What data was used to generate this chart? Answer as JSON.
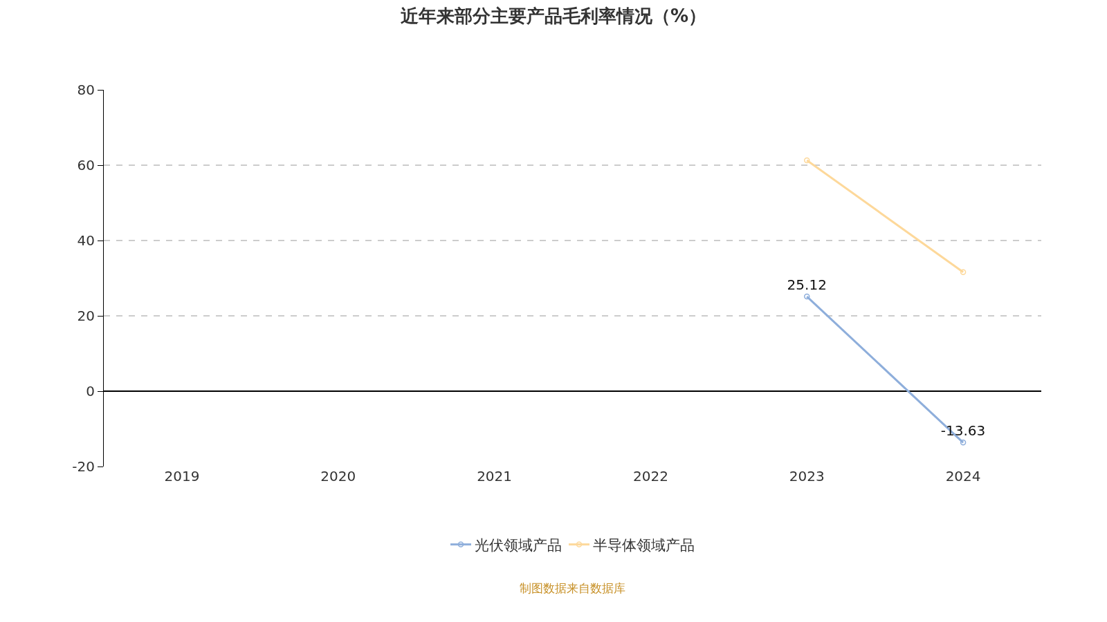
{
  "chart_data": {
    "type": "line",
    "title": "近年来部分主要产品毛利率情况（%）",
    "categories": [
      "2019",
      "2020",
      "2021",
      "2022",
      "2023",
      "2024"
    ],
    "series": [
      {
        "name": "光伏领域产品",
        "color": "#8eaedb",
        "values": [
          null,
          null,
          null,
          null,
          25.12,
          -13.63
        ],
        "value_labels": [
          null,
          null,
          null,
          null,
          "25.12",
          "-13.63"
        ]
      },
      {
        "name": "半导体领域产品",
        "color": "#fdd89a",
        "values": [
          null,
          null,
          null,
          null,
          61.3,
          31.6
        ]
      }
    ],
    "ylim": [
      -20,
      80
    ],
    "yticks": [
      -20,
      0,
      20,
      40,
      60,
      80
    ],
    "grid": "y",
    "legend": "bottom",
    "marker": "circle",
    "line_style": "solid",
    "annotations": [
      "制图数据来自数据库"
    ]
  }
}
